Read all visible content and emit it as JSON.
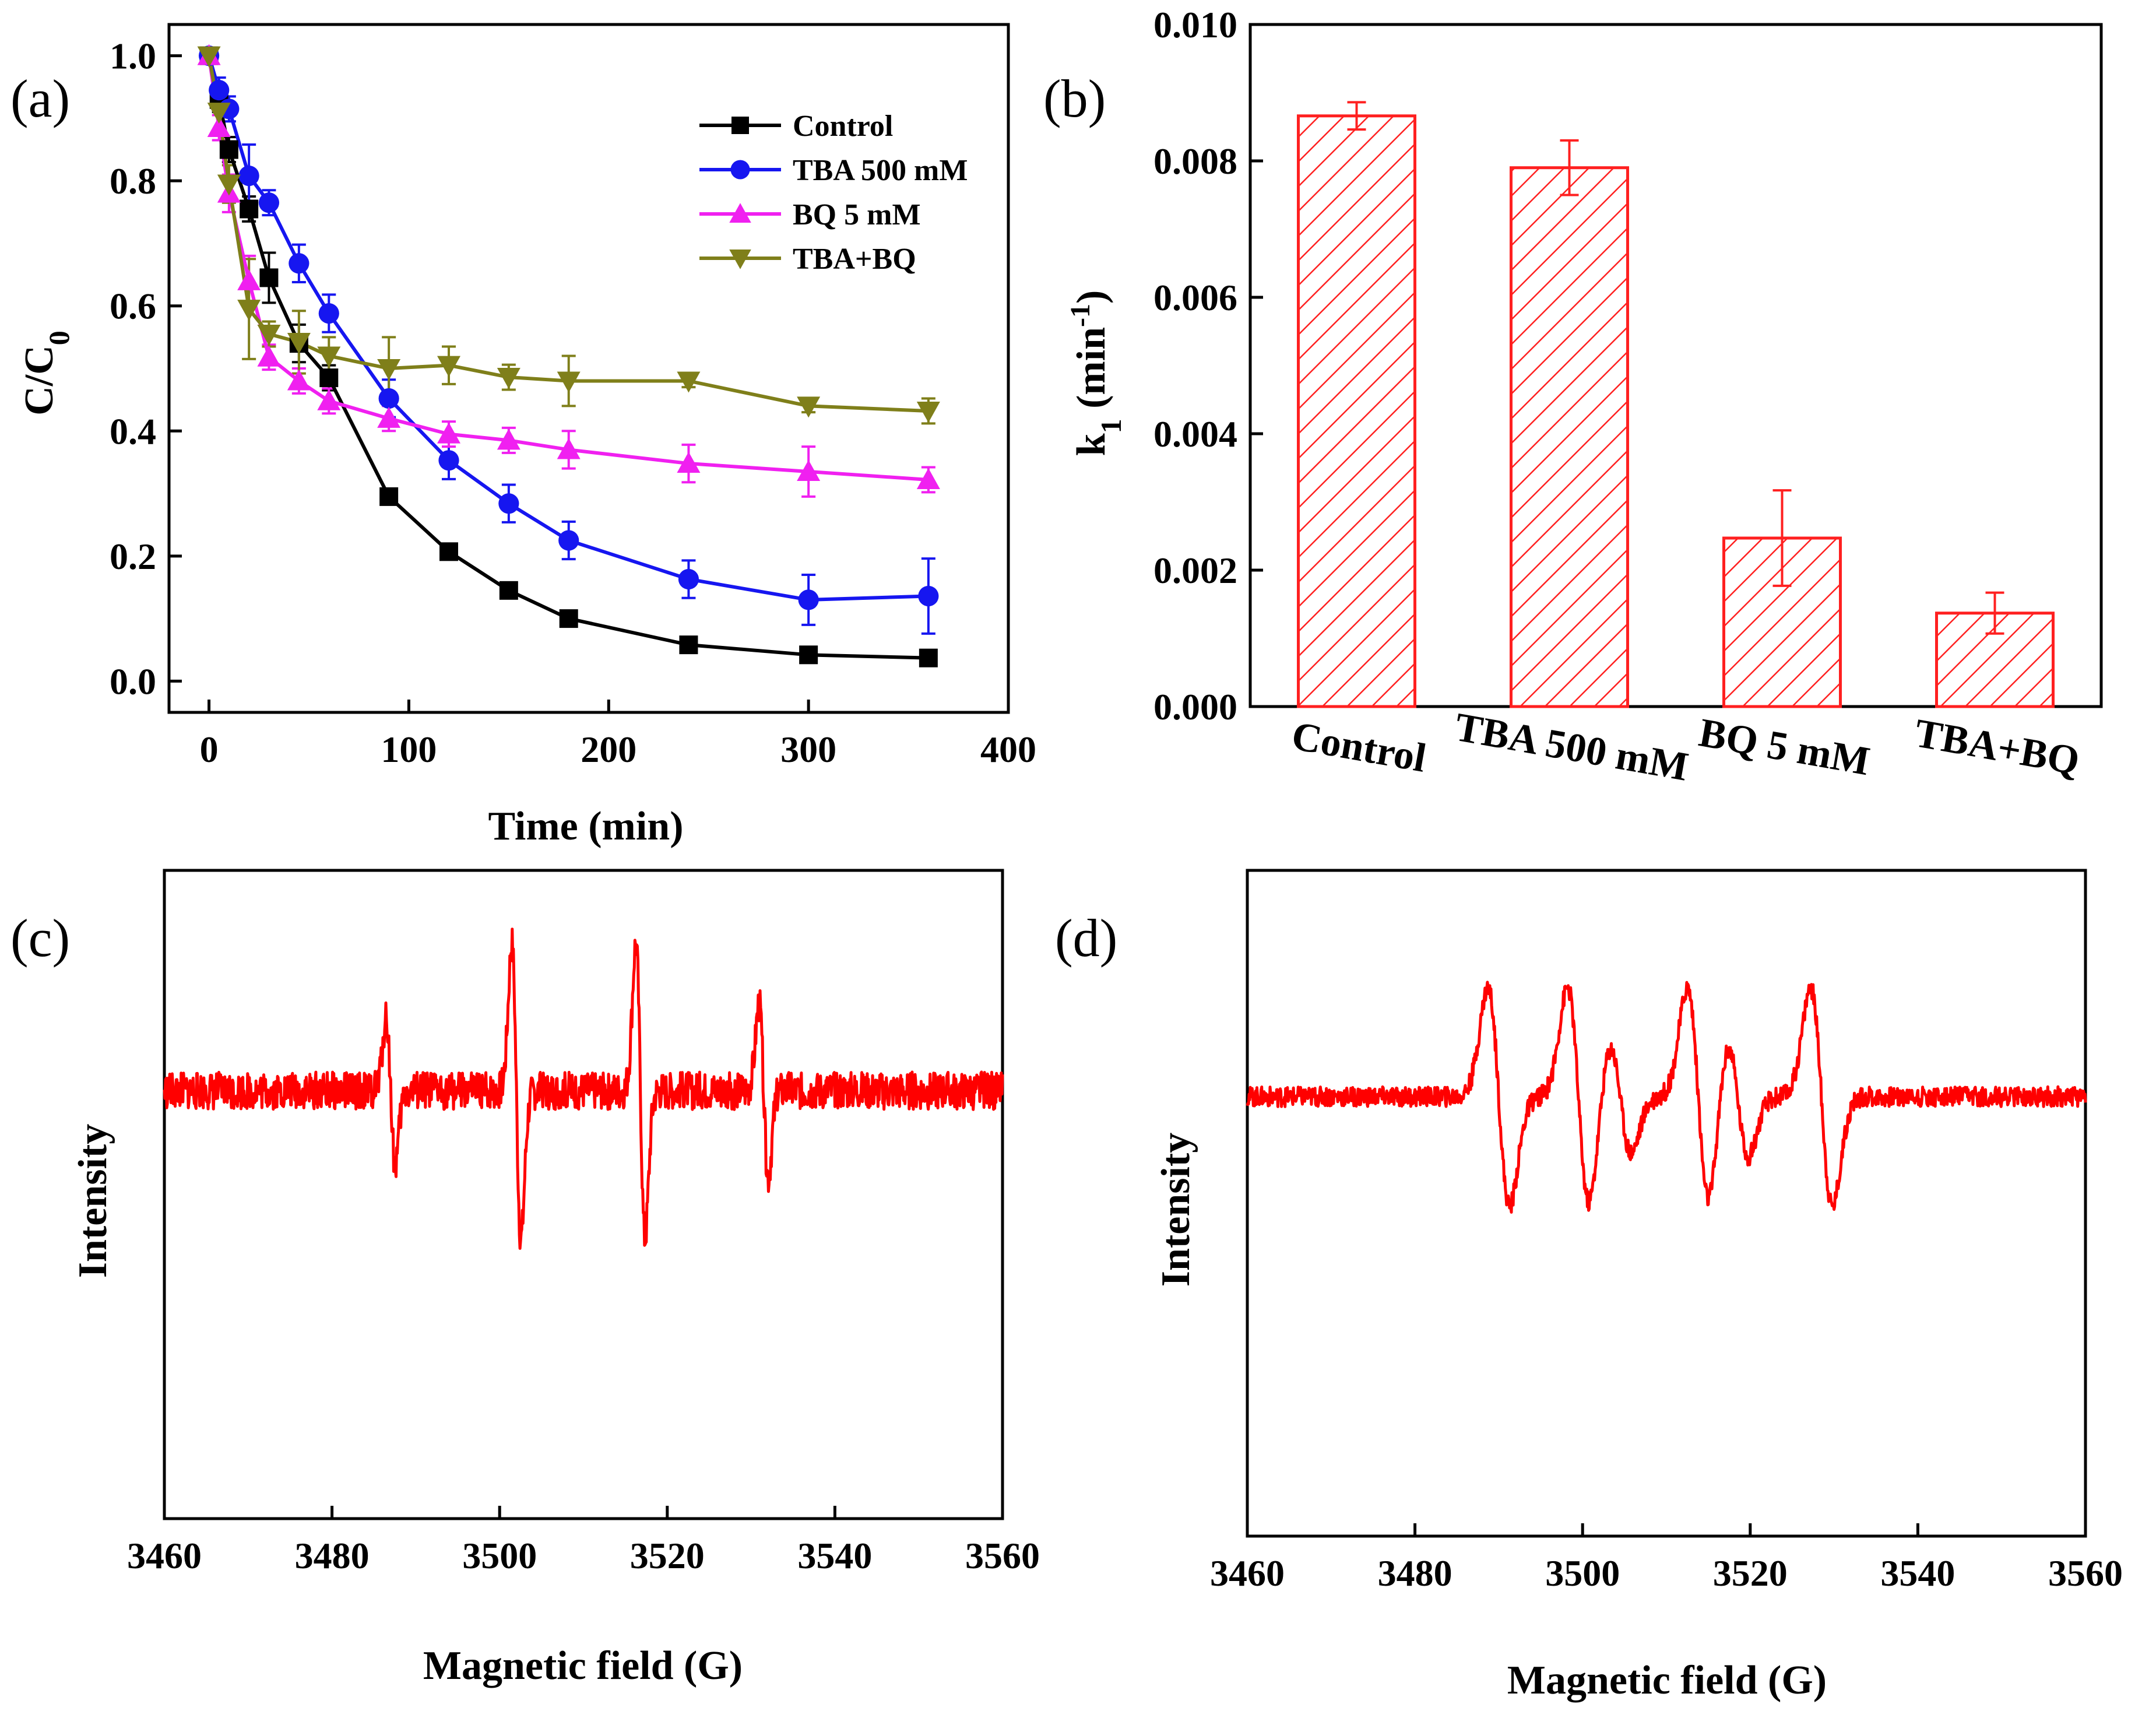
{
  "chart_data": [
    {
      "panel": "(a)",
      "type": "line",
      "xlabel": "Time (min)",
      "ylabel": "C/C0",
      "xlim": [
        -20,
        400
      ],
      "ylim": [
        -0.05,
        1.05
      ],
      "xticks": [
        0,
        100,
        200,
        300,
        400
      ],
      "yticks": [
        0.0,
        0.2,
        0.4,
        0.6,
        0.8,
        1.0
      ],
      "legend_position": "top-right",
      "x": [
        0,
        5,
        10,
        20,
        30,
        45,
        60,
        90,
        120,
        150,
        180,
        240,
        300,
        360
      ],
      "series": [
        {
          "name": "Control",
          "color": "#000000",
          "marker": "square",
          "values": [
            1.0,
            0.93,
            0.85,
            0.755,
            0.645,
            0.54,
            0.485,
            0.295,
            0.207,
            0.145,
            0.1,
            0.058,
            0.042,
            0.037
          ],
          "errors": [
            0.01,
            0.02,
            0.02,
            0.02,
            0.04,
            0.03,
            0.02,
            0.01,
            0.01,
            0.01,
            0.01,
            0.01,
            0.01,
            0.01
          ]
        },
        {
          "name": "TBA 500 mM",
          "color": "#1616f0",
          "marker": "circle",
          "values": [
            1.0,
            0.945,
            0.915,
            0.808,
            0.765,
            0.668,
            0.588,
            0.452,
            0.353,
            0.284,
            0.225,
            0.163,
            0.13,
            0.136
          ],
          "errors": [
            0.01,
            0.02,
            0.02,
            0.05,
            0.02,
            0.03,
            0.03,
            0.03,
            0.03,
            0.03,
            0.03,
            0.03,
            0.04,
            0.06
          ]
        },
        {
          "name": "BQ 5 mM",
          "color": "#f020f0",
          "marker": "triangle-up",
          "values": [
            1.0,
            0.885,
            0.78,
            0.64,
            0.518,
            0.48,
            0.448,
            0.42,
            0.395,
            0.385,
            0.37,
            0.348,
            0.335,
            0.322
          ],
          "errors": [
            0.01,
            0.02,
            0.03,
            0.04,
            0.02,
            0.02,
            0.02,
            0.02,
            0.02,
            0.02,
            0.03,
            0.03,
            0.04,
            0.02
          ]
        },
        {
          "name": "TBA+BQ",
          "color": "#7f7f1a",
          "marker": "triangle-down",
          "values": [
            1.0,
            0.91,
            0.795,
            0.595,
            0.555,
            0.542,
            0.52,
            0.5,
            0.505,
            0.486,
            0.48,
            0.48,
            0.44,
            0.432
          ],
          "errors": [
            0.01,
            0.03,
            0.03,
            0.08,
            0.02,
            0.05,
            0.03,
            0.05,
            0.03,
            0.02,
            0.04,
            0.01,
            0.01,
            0.02
          ]
        }
      ]
    },
    {
      "panel": "(b)",
      "type": "bar",
      "ylabel_main": "k",
      "ylabel_sub": "1",
      "ylabel_unit": " (min",
      "ylabel_exp": "-1",
      "ylabel_close": ")",
      "categories": [
        "Control",
        "TBA 500 mM",
        "BQ 5 mM",
        "TBA+BQ"
      ],
      "values": [
        0.00866,
        0.0079,
        0.00247,
        0.00137
      ],
      "errors": [
        0.0002,
        0.0004,
        0.0007,
        0.0003
      ],
      "ylim": [
        0,
        0.01
      ],
      "yticks": [
        "0.000",
        "0.002",
        "0.004",
        "0.006",
        "0.008",
        "0.010"
      ],
      "color": "#ff2020",
      "fill": "diagonal-hatch"
    },
    {
      "panel": "(c)",
      "type": "line",
      "xlabel": "Magnetic field (G)",
      "ylabel": "Intensity",
      "xlim": [
        3460,
        3560
      ],
      "xticks": [
        3460,
        3480,
        3500,
        3520,
        3540,
        3560
      ],
      "color": "#ff0000",
      "signal": "quartet",
      "peaks": [
        {
          "center": 3487,
          "amplitude": 0.27
        },
        {
          "center": 3502,
          "amplitude": 0.55
        },
        {
          "center": 3516.8,
          "amplitude": 0.55
        },
        {
          "center": 3531.5,
          "amplitude": 0.32
        }
      ],
      "noise": 0.07
    },
    {
      "panel": "(d)",
      "type": "line",
      "xlabel": "Magnetic field (G)",
      "ylabel": "Intensity",
      "xlim": [
        3460,
        3560
      ],
      "xticks": [
        3460,
        3480,
        3500,
        3520,
        3540,
        3560
      ],
      "color": "#ff0000",
      "signal": "sextet",
      "peaks": [
        {
          "center": 3490,
          "amplitude": 0.55
        },
        {
          "center": 3499.5,
          "amplitude": 0.55
        },
        {
          "center": 3504.5,
          "amplitude": 0.28
        },
        {
          "center": 3513.8,
          "amplitude": 0.55
        },
        {
          "center": 3518.5,
          "amplitude": 0.3
        },
        {
          "center": 3528.5,
          "amplitude": 0.55
        }
      ],
      "noise": 0.05
    }
  ]
}
